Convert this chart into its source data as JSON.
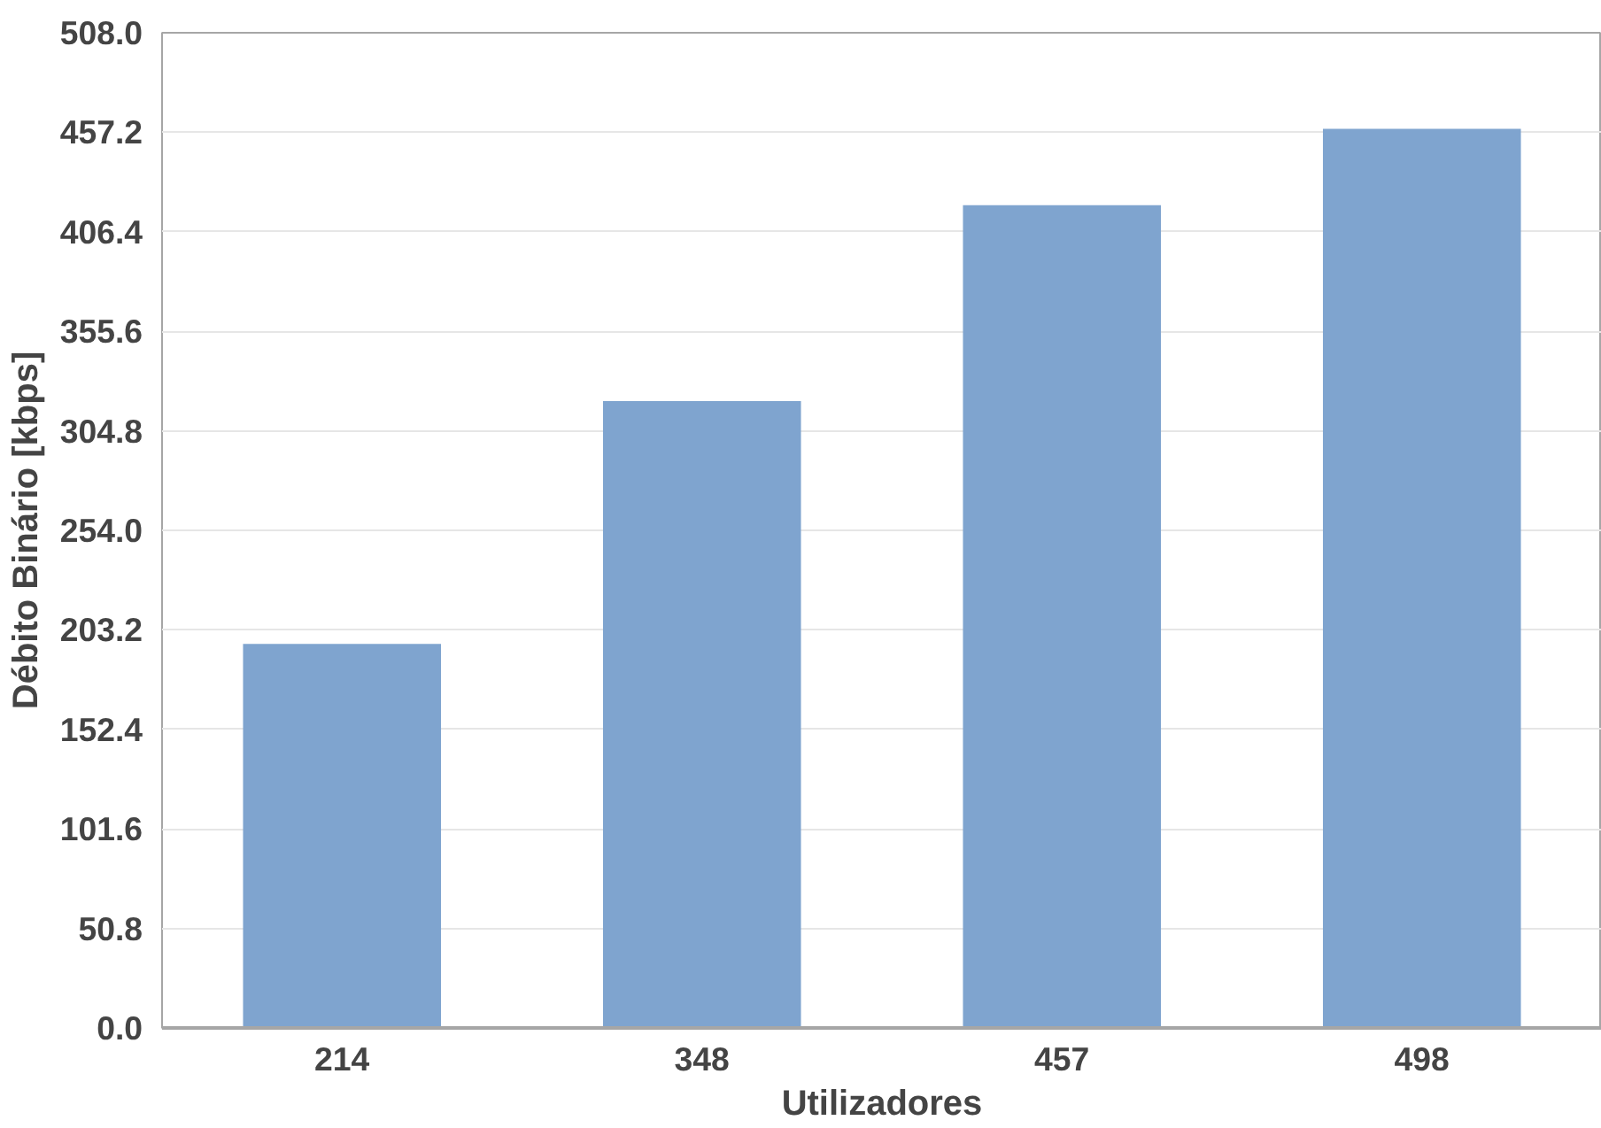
{
  "chart_data": {
    "type": "bar",
    "xlabel": "Utilizadores",
    "ylabel": "Débito Binário [kbps]",
    "categories": [
      "214",
      "348",
      "457",
      "498"
    ],
    "values": [
      196,
      320,
      420,
      459
    ],
    "color": "#7fa4cf",
    "ylim": [
      0,
      508
    ],
    "yticks": [
      {
        "value": 0,
        "label": "0.0"
      },
      50.8,
      101.6,
      152.4,
      203.2,
      {
        "value": 254,
        "label": "254.0"
      },
      304.8,
      355.6,
      406.4,
      457.2,
      {
        "value": 508,
        "label": "508.0"
      }
    ],
    "grid": "y"
  }
}
